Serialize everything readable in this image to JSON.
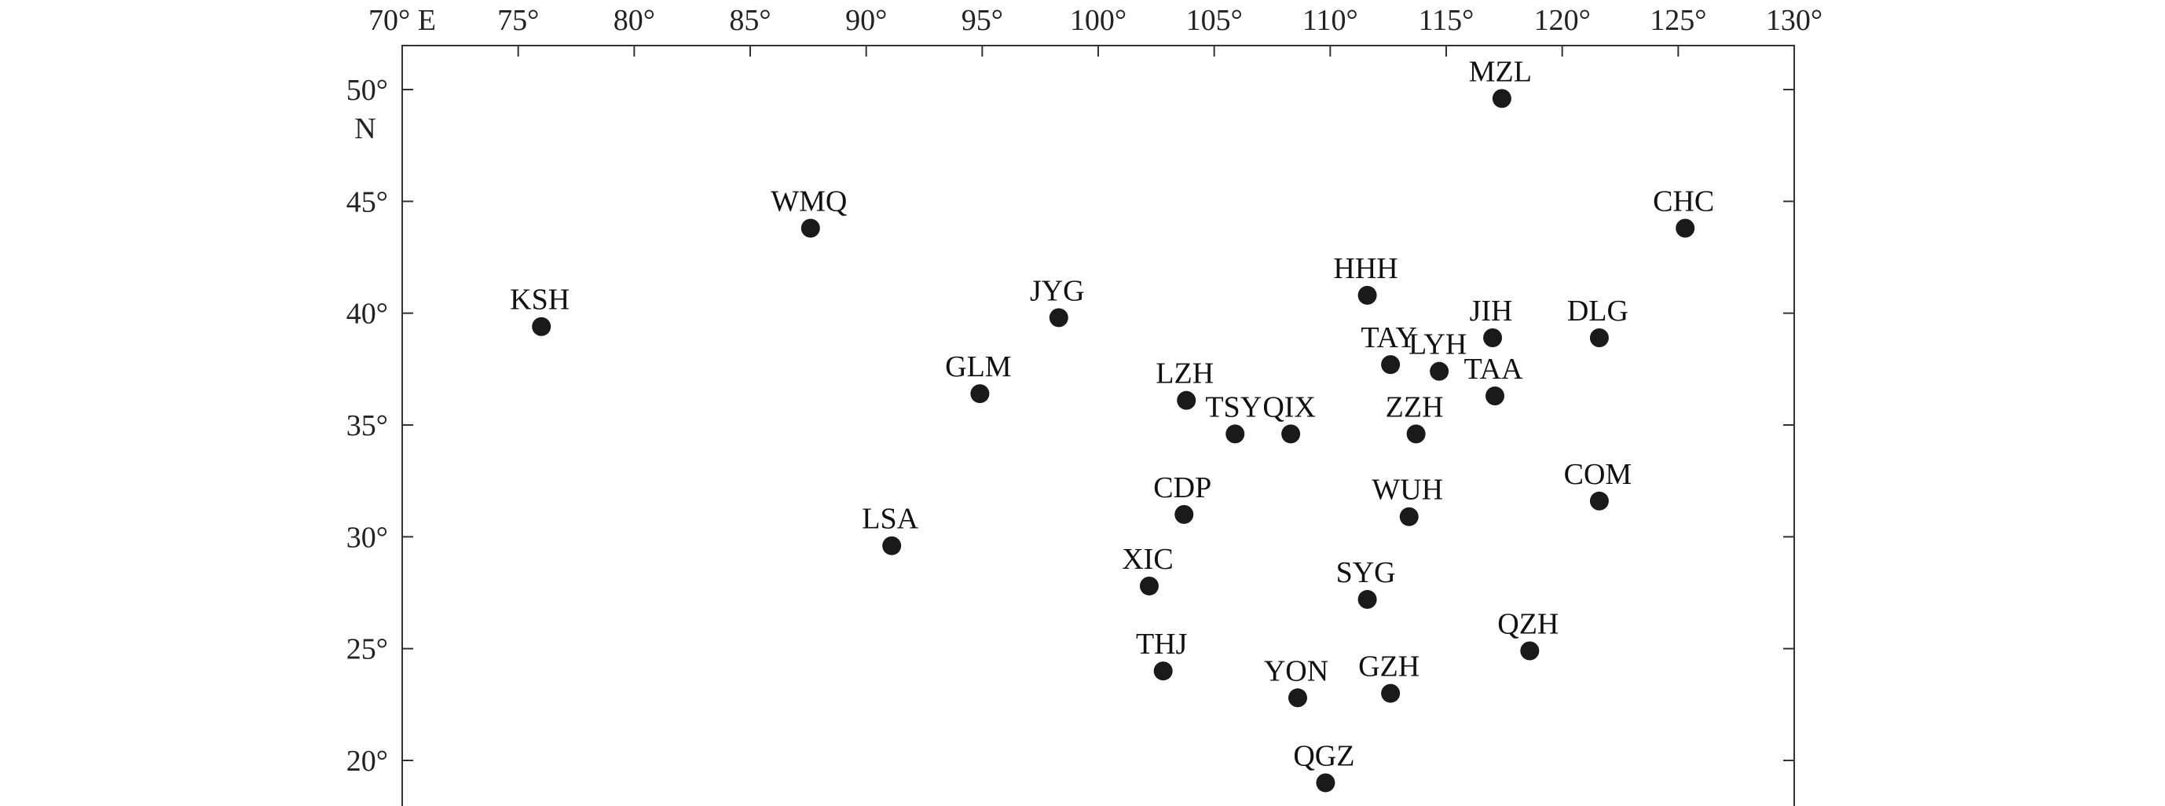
{
  "map": {
    "lon_range": [
      70,
      130
    ],
    "lat_range": [
      18,
      52
    ],
    "lon_ticks": [
      {
        "value": 70,
        "label": "70° E"
      },
      {
        "value": 75,
        "label": "75°"
      },
      {
        "value": 80,
        "label": "80°"
      },
      {
        "value": 85,
        "label": "85°"
      },
      {
        "value": 90,
        "label": "90°"
      },
      {
        "value": 95,
        "label": "95°"
      },
      {
        "value": 100,
        "label": "100°"
      },
      {
        "value": 105,
        "label": "105°"
      },
      {
        "value": 110,
        "label": "110°"
      },
      {
        "value": 115,
        "label": "115°"
      },
      {
        "value": 120,
        "label": "120°"
      },
      {
        "value": 125,
        "label": "125°"
      },
      {
        "value": 130,
        "label": "130°"
      }
    ],
    "lat_ticks": [
      {
        "value": 50,
        "label": "50°"
      },
      {
        "value": 45,
        "label": "45°"
      },
      {
        "value": 40,
        "label": "40°"
      },
      {
        "value": 35,
        "label": "35°"
      },
      {
        "value": 30,
        "label": "30°"
      },
      {
        "value": 25,
        "label": "25°"
      },
      {
        "value": 20,
        "label": "20°"
      }
    ],
    "lat_unit": "N",
    "marker_color": "#1a1a1a",
    "stations": [
      {
        "code": "MZL",
        "lon": 117.4,
        "lat": 49.6
      },
      {
        "code": "WMQ",
        "lon": 87.6,
        "lat": 43.8
      },
      {
        "code": "CHC",
        "lon": 125.3,
        "lat": 43.8
      },
      {
        "code": "KSH",
        "lon": 76.0,
        "lat": 39.4
      },
      {
        "code": "JYG",
        "lon": 98.3,
        "lat": 39.8
      },
      {
        "code": "HHH",
        "lon": 111.6,
        "lat": 40.8
      },
      {
        "code": "JIH",
        "lon": 117.0,
        "lat": 38.9
      },
      {
        "code": "DLG",
        "lon": 121.6,
        "lat": 38.9
      },
      {
        "code": "TAY",
        "lon": 112.6,
        "lat": 37.7
      },
      {
        "code": "LYH",
        "lon": 114.7,
        "lat": 37.4
      },
      {
        "code": "TAA",
        "lon": 117.1,
        "lat": 36.3
      },
      {
        "code": "GLM",
        "lon": 94.9,
        "lat": 36.4
      },
      {
        "code": "LZH",
        "lon": 103.8,
        "lat": 36.1
      },
      {
        "code": "TSY",
        "lon": 105.9,
        "lat": 34.6
      },
      {
        "code": "QIX",
        "lon": 108.3,
        "lat": 34.6
      },
      {
        "code": "ZZH",
        "lon": 113.7,
        "lat": 34.6
      },
      {
        "code": "CDP",
        "lon": 103.7,
        "lat": 31.0
      },
      {
        "code": "WUH",
        "lon": 113.4,
        "lat": 30.9
      },
      {
        "code": "COM",
        "lon": 121.6,
        "lat": 31.6
      },
      {
        "code": "LSA",
        "lon": 91.1,
        "lat": 29.6
      },
      {
        "code": "XIC",
        "lon": 102.2,
        "lat": 27.8
      },
      {
        "code": "SYG",
        "lon": 111.6,
        "lat": 27.2
      },
      {
        "code": "QZH",
        "lon": 118.6,
        "lat": 24.9
      },
      {
        "code": "THJ",
        "lon": 102.8,
        "lat": 24.0
      },
      {
        "code": "YON",
        "lon": 108.6,
        "lat": 22.8
      },
      {
        "code": "GZH",
        "lon": 112.6,
        "lat": 23.0
      },
      {
        "code": "QGZ",
        "lon": 109.8,
        "lat": 19.0
      }
    ]
  }
}
